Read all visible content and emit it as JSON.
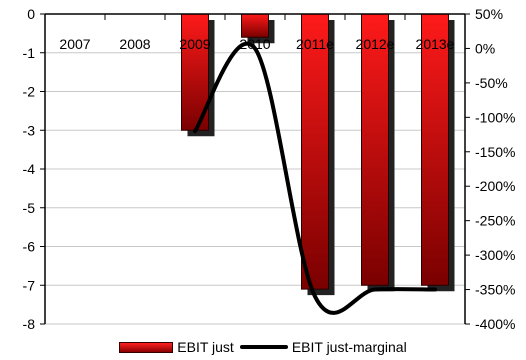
{
  "chart_data": {
    "type": "bar",
    "categories": [
      "2007",
      "2008",
      "2009",
      "2010",
      "2011e",
      "2012e",
      "2013e"
    ],
    "series": [
      {
        "name": "EBIT just",
        "axis": "left",
        "values": [
          null,
          null,
          -3.0,
          -0.6,
          -7.1,
          -7.0,
          -7.0
        ],
        "color": "#d40000"
      },
      {
        "name": "EBIT just-marginal",
        "axis": "right",
        "type": "line",
        "values": [
          null,
          null,
          -120,
          0,
          -360,
          -350,
          -350
        ],
        "color": "#000000"
      }
    ],
    "yleft": {
      "lim": [
        -8,
        0
      ],
      "ticks": [
        "0",
        "-1",
        "-2",
        "-3",
        "-4",
        "-5",
        "-6",
        "-7",
        "-8"
      ]
    },
    "yright": {
      "lim": [
        -400,
        50
      ],
      "ticks": [
        "50%",
        "0%",
        "-50%",
        "-100%",
        "-150%",
        "-200%",
        "-250%",
        "-300%",
        "-350%",
        "-400%"
      ]
    },
    "grid": true,
    "legend_position": "bottom"
  },
  "legend": {
    "bar_label": "EBIT just",
    "line_label": "EBIT just-marginal"
  }
}
